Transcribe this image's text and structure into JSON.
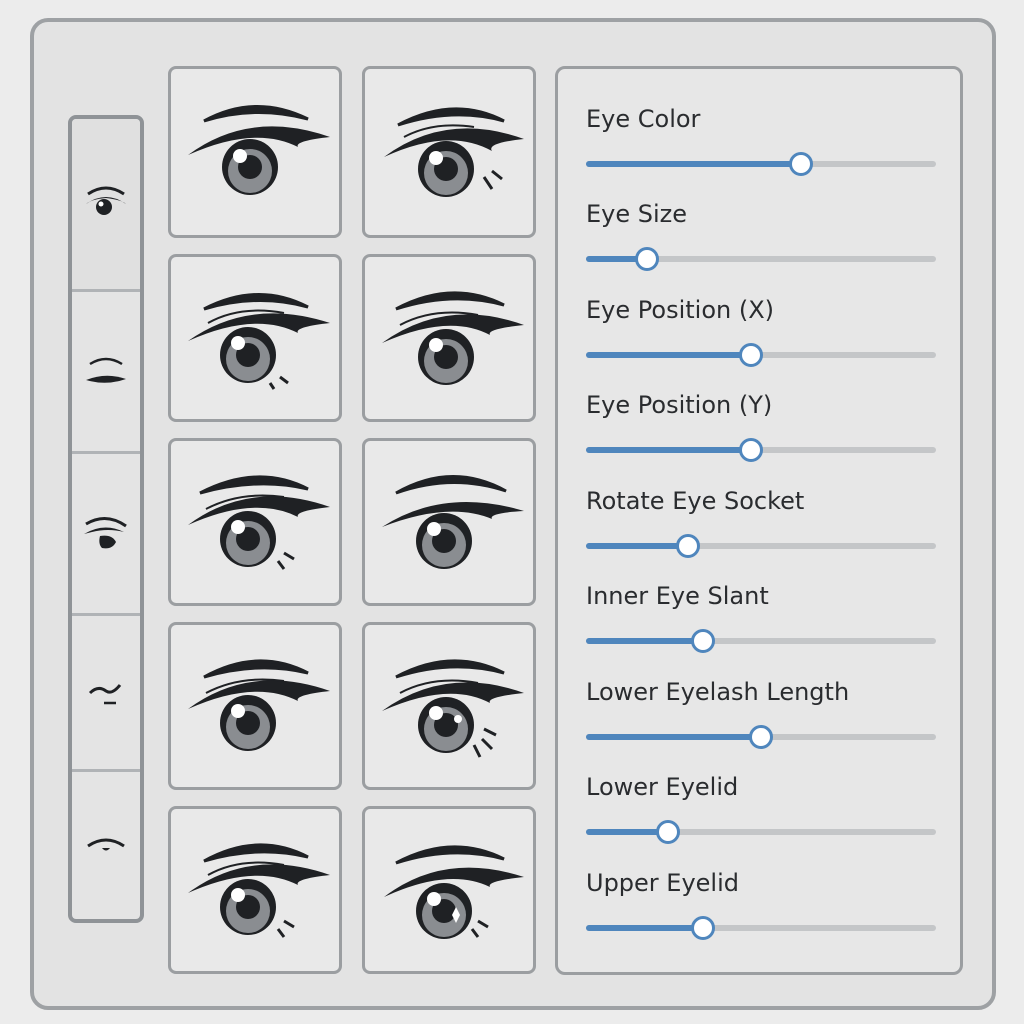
{
  "categories": [
    {
      "icon": "eye-icon",
      "selected": true
    },
    {
      "icon": "closed-eye-icon",
      "selected": false
    },
    {
      "icon": "eye-side-icon",
      "selected": false
    },
    {
      "icon": "eyebrow-curve-icon",
      "selected": false
    },
    {
      "icon": "eyelid-icon",
      "selected": false
    }
  ],
  "presets": [
    {
      "icon": "eye-preset-icon",
      "variant": 1
    },
    {
      "icon": "eye-preset-icon",
      "variant": 2
    },
    {
      "icon": "eye-preset-icon",
      "variant": 3
    },
    {
      "icon": "eye-preset-icon",
      "variant": 4
    },
    {
      "icon": "eye-preset-icon",
      "variant": 5
    },
    {
      "icon": "eye-preset-icon",
      "variant": 6
    },
    {
      "icon": "eye-preset-icon",
      "variant": 7
    },
    {
      "icon": "eye-preset-icon",
      "variant": 8
    },
    {
      "icon": "eye-preset-icon",
      "variant": 9
    },
    {
      "icon": "eye-preset-icon",
      "variant": 10
    }
  ],
  "sliders": [
    {
      "label": "Eye Color",
      "value": 0.615
    },
    {
      "label": "Eye Size",
      "value": 0.175
    },
    {
      "label": "Eye Position (X)",
      "value": 0.47
    },
    {
      "label": "Eye Position (Y)",
      "value": 0.47
    },
    {
      "label": "Rotate Eye Socket",
      "value": 0.29
    },
    {
      "label": "Inner Eye Slant",
      "value": 0.335
    },
    {
      "label": "Lower Eyelash Length",
      "value": 0.5
    },
    {
      "label": "Lower Eyelid",
      "value": 0.235
    },
    {
      "label": "Upper Eyelid",
      "value": 0.335
    }
  ],
  "colors": {
    "accent": "#4f86bd",
    "track": "#c4c6c8",
    "ink": "#1f2124",
    "iris": "#8a8d91"
  }
}
